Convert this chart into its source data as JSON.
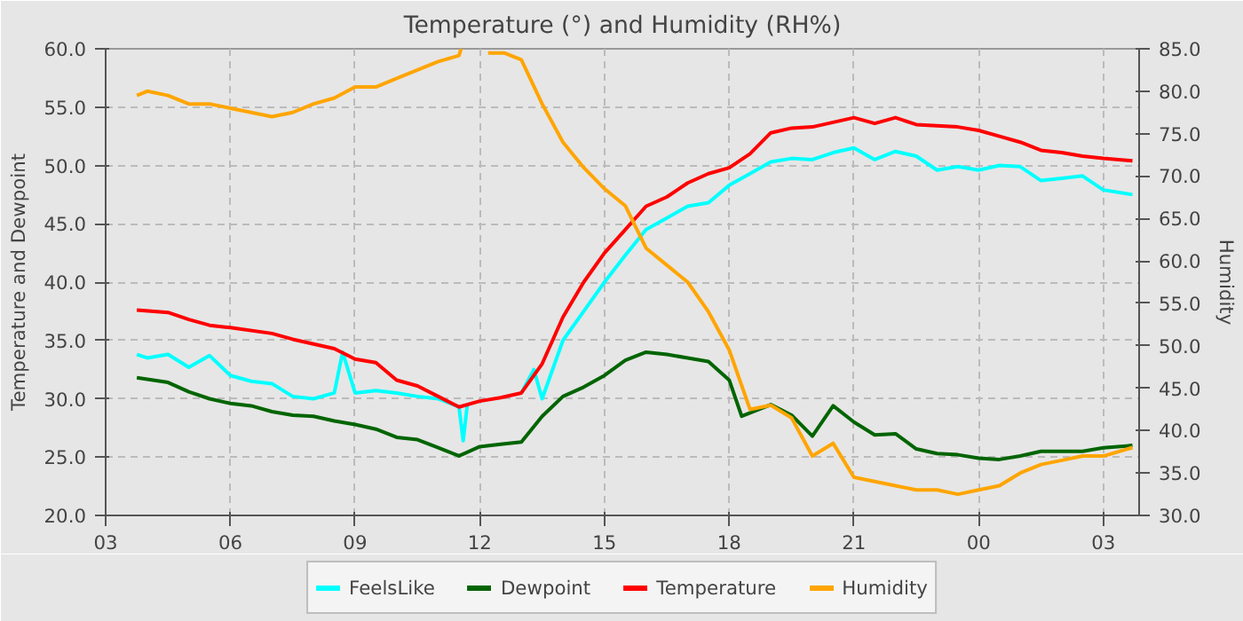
{
  "chart_data": {
    "type": "line",
    "title": "Temperature (°) and Humidity (RH%)",
    "ylabel": "Temperature and Dewpoint",
    "y2label": "Humidity",
    "xlim": [
      3,
      27.86
    ],
    "xticks": [
      {
        "value": 3,
        "label": "03"
      },
      {
        "value": 6,
        "label": "06"
      },
      {
        "value": 9,
        "label": "09"
      },
      {
        "value": 12,
        "label": "12"
      },
      {
        "value": 15,
        "label": "15"
      },
      {
        "value": 18,
        "label": "18"
      },
      {
        "value": 21,
        "label": "21"
      },
      {
        "value": 24,
        "label": "00"
      },
      {
        "value": 27,
        "label": "03"
      }
    ],
    "ylim": [
      20,
      60
    ],
    "yticks": [
      {
        "value": 20,
        "label": "20.0"
      },
      {
        "value": 25,
        "label": "25.0"
      },
      {
        "value": 30,
        "label": "30.0"
      },
      {
        "value": 35,
        "label": "35.0"
      },
      {
        "value": 40,
        "label": "40.0"
      },
      {
        "value": 45,
        "label": "45.0"
      },
      {
        "value": 50,
        "label": "50.0"
      },
      {
        "value": 55,
        "label": "55.0"
      },
      {
        "value": 60,
        "label": "60.0"
      }
    ],
    "y2lim": [
      30,
      85
    ],
    "y2ticks": [
      {
        "value": 30,
        "label": "30.0"
      },
      {
        "value": 35,
        "label": "35.0"
      },
      {
        "value": 40,
        "label": "40.0"
      },
      {
        "value": 45,
        "label": "45.0"
      },
      {
        "value": 50,
        "label": "50.0"
      },
      {
        "value": 55,
        "label": "55.0"
      },
      {
        "value": 60,
        "label": "60.0"
      },
      {
        "value": 65,
        "label": "65.0"
      },
      {
        "value": 70,
        "label": "70.0"
      },
      {
        "value": 75,
        "label": "75.0"
      },
      {
        "value": 80,
        "label": "80.0"
      },
      {
        "value": 85,
        "label": "85.0"
      }
    ],
    "grid": true,
    "legend": "bottom",
    "marker": "none",
    "line_style": "solid",
    "series": [
      {
        "name": "FeelsLike",
        "color": "#00ffff",
        "x": [
          3.75,
          4,
          4.5,
          5,
          5.5,
          6,
          6.5,
          7,
          7.5,
          8,
          8.5,
          8.7,
          9,
          9.5,
          10,
          10.5,
          11,
          11.5,
          11.6,
          11.7,
          12,
          12.5,
          13,
          13.3,
          13.5,
          14,
          14.5,
          15,
          15.5,
          16,
          16.5,
          17,
          17.5,
          18,
          18.5,
          19,
          19.5,
          20,
          20.5,
          21,
          21.5,
          22,
          22.5,
          23,
          23.5,
          24,
          24.5,
          25,
          25.5,
          26,
          26.5,
          27,
          27.7
        ],
        "values": [
          33.8,
          33.5,
          33.8,
          32.7,
          33.7,
          32,
          31.5,
          31.3,
          30.2,
          30,
          30.5,
          34,
          30.5,
          30.7,
          30.5,
          30.2,
          30,
          29.3,
          26.4,
          29.5,
          null,
          null,
          30.5,
          32.5,
          30,
          35,
          37.5,
          40,
          42.3,
          44.5,
          45.5,
          46.5,
          46.8,
          48.3,
          49.3,
          50.3,
          50.6,
          50.5,
          51.1,
          51.5,
          50.5,
          51.2,
          50.8,
          49.6,
          49.9,
          49.6,
          50,
          49.9,
          48.7,
          48.9,
          49.1,
          47.9,
          47.5
        ]
      },
      {
        "name": "Dewpoint",
        "color": "#006400",
        "x": [
          3.75,
          4.5,
          5,
          5.5,
          6,
          6.5,
          7,
          7.5,
          8,
          8.5,
          9,
          9.5,
          10,
          10.5,
          11,
          11.5,
          12,
          12.5,
          13,
          13.5,
          14,
          14.5,
          15,
          15.5,
          16,
          16.5,
          17,
          17.5,
          18,
          18.3,
          19,
          19.5,
          20,
          20.5,
          21,
          21.5,
          22,
          22.5,
          23,
          23.5,
          24,
          24.5,
          25,
          25.5,
          26,
          26.5,
          27,
          27.7
        ],
        "values": [
          31.8,
          31.4,
          30.6,
          30,
          29.6,
          29.4,
          28.9,
          28.6,
          28.5,
          28.1,
          27.8,
          27.4,
          26.7,
          26.5,
          25.8,
          25.1,
          25.9,
          26.1,
          26.3,
          28.5,
          30.2,
          31,
          32,
          33.3,
          34,
          33.8,
          33.5,
          33.2,
          31.6,
          28.5,
          29.5,
          28.6,
          26.8,
          29.4,
          28,
          26.9,
          27,
          25.7,
          25.3,
          25.2,
          24.9,
          24.8,
          25.1,
          25.5,
          25.5,
          25.5,
          25.8,
          26
        ]
      },
      {
        "name": "Temperature",
        "color": "#ff0000",
        "x": [
          3.75,
          4.5,
          5,
          5.5,
          6,
          7,
          7.5,
          8,
          8.5,
          9,
          9.5,
          10,
          10.5,
          11,
          11.5,
          12,
          12.5,
          13,
          13.5,
          14,
          14.5,
          15,
          15.5,
          16,
          16.5,
          17,
          17.5,
          18,
          18.5,
          19,
          19.5,
          20,
          20.5,
          21,
          21.5,
          22,
          22.5,
          23,
          23.5,
          24,
          24.5,
          25,
          25.5,
          26,
          26.5,
          27,
          27.7
        ],
        "values": [
          37.6,
          37.4,
          36.8,
          36.3,
          36.1,
          35.6,
          35.1,
          34.7,
          34.3,
          33.4,
          33.1,
          31.6,
          31.1,
          30.2,
          29.3,
          29.8,
          30.1,
          30.5,
          33,
          37,
          40,
          42.5,
          44.5,
          46.5,
          47.3,
          48.5,
          49.3,
          49.8,
          51,
          52.8,
          53.2,
          53.3,
          53.7,
          54.1,
          53.6,
          54.1,
          53.5,
          53.4,
          53.3,
          53,
          52.5,
          52,
          51.3,
          51.1,
          50.8,
          50.6,
          50.4
        ]
      },
      {
        "name": "Humidity",
        "color": "#ffa500",
        "axis": "y2",
        "x": [
          3.75,
          4,
          4.5,
          5,
          5.5,
          6,
          6.5,
          7,
          7.5,
          8,
          8.5,
          9,
          9.5,
          10,
          10.5,
          11,
          11.5,
          11.55,
          11.6,
          12.2,
          12.6,
          13,
          13.5,
          14,
          14.5,
          15,
          15.5,
          16,
          16.5,
          17,
          17.5,
          18,
          18.5,
          19,
          19.5,
          20,
          20.5,
          21,
          21.5,
          22,
          22.5,
          23,
          23.5,
          24,
          24.5,
          25,
          25.5,
          26,
          26.5,
          27,
          27.7
        ],
        "values": [
          79.5,
          80,
          79.5,
          78.5,
          78.5,
          78,
          77.5,
          77,
          77.5,
          78.5,
          79.2,
          80.5,
          80.5,
          81.5,
          82.5,
          83.5,
          84.2,
          85,
          null,
          84.5,
          84.5,
          83.7,
          78.5,
          74,
          71,
          68.5,
          66.5,
          61.5,
          59.5,
          57.5,
          54,
          49.5,
          42.5,
          43,
          41.5,
          37,
          38.5,
          34.5,
          34,
          33.5,
          33,
          33,
          32.5,
          33,
          33.5,
          35,
          36,
          36.5,
          37,
          37,
          38
        ]
      }
    ]
  }
}
